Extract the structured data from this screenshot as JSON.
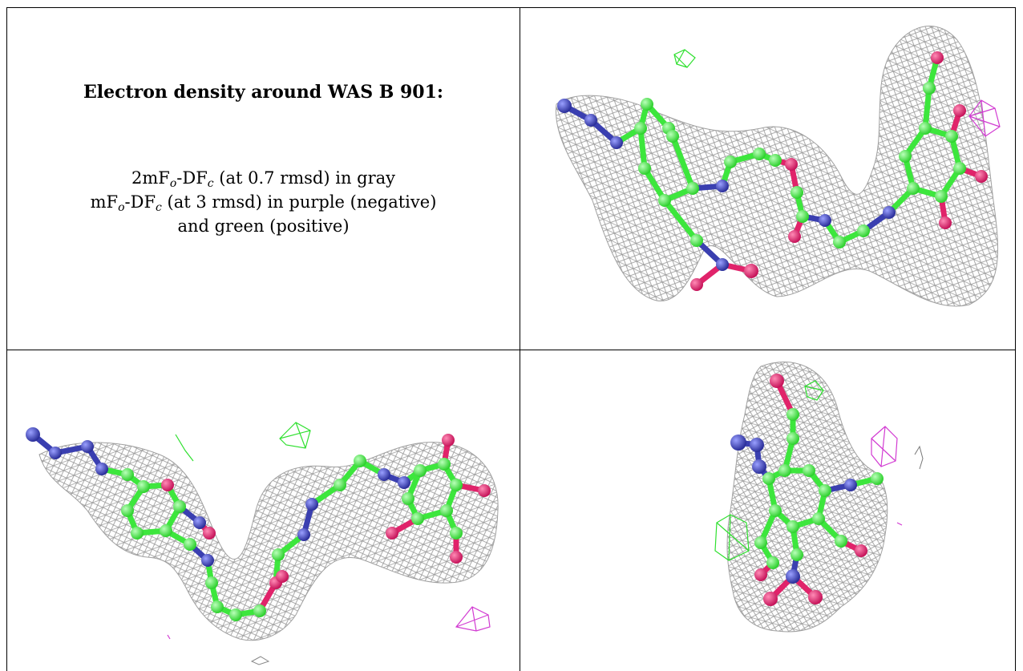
{
  "caption": {
    "title": "Electron density around WAS B 901:",
    "line1": {
      "pre": "2mF",
      "sub1": "o",
      "mid": "-DF",
      "sub2": "c",
      "post": " (at 0.7 rmsd) in gray"
    },
    "line2": {
      "pre": "mF",
      "sub1": "o",
      "mid": "-DF",
      "sub2": "c",
      "post": " (at 3 rmsd) in purple (negative)"
    },
    "line3": "and green (positive)"
  },
  "panels": [
    {
      "view": "top-right"
    },
    {
      "view": "bottom-left"
    },
    {
      "view": "bottom-right"
    }
  ],
  "colors": {
    "carbon": "#3de63d",
    "nitrogen": "#3a3fb0",
    "oxygen": "#e0236a",
    "mesh_2fofc": "#9a9a9a",
    "mesh_positive": "#2fe02f",
    "mesh_negative": "#d23bd2",
    "border": "#000000"
  }
}
